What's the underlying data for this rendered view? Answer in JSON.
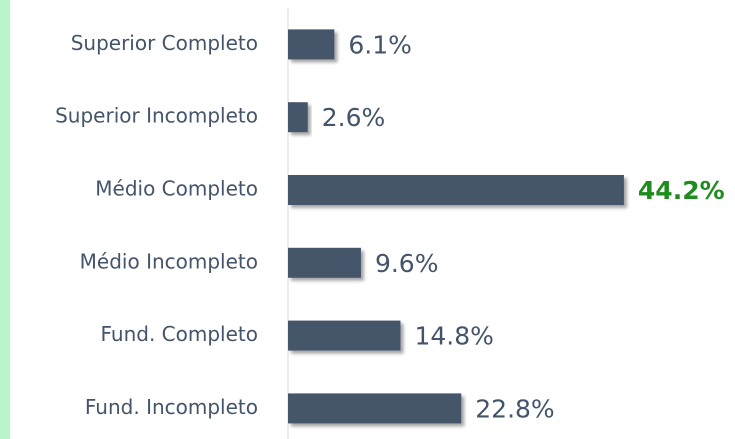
{
  "chart_data": {
    "type": "bar",
    "orientation": "horizontal",
    "categories": [
      "Superior Completo",
      "Superior Incompleto",
      "Médio Completo",
      "Médio Incompleto",
      "Fund. Completo",
      "Fund. Incompleto"
    ],
    "values": [
      6.1,
      2.6,
      44.2,
      9.6,
      14.8,
      22.8
    ],
    "value_labels": [
      "6.1%",
      "2.6%",
      "44.2%",
      "9.6%",
      "14.8%",
      "22.8%"
    ],
    "color": "#44546a",
    "highlight_index": 2,
    "highlight_color": "#1e8c1e"
  }
}
